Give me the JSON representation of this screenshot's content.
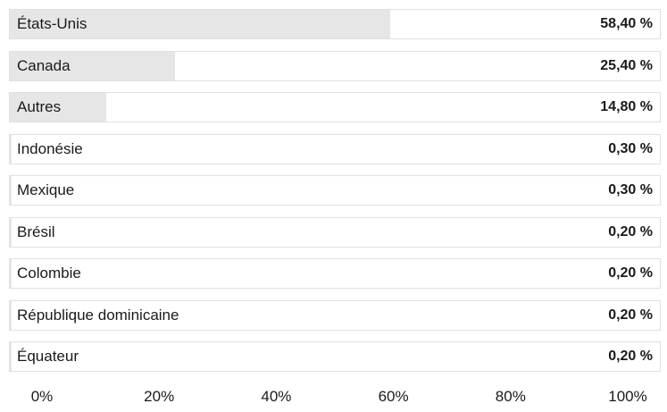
{
  "chart_data": {
    "type": "bar",
    "orientation": "horizontal",
    "categories": [
      "États-Unis",
      "Canada",
      "Autres",
      "Indonésie",
      "Mexique",
      "Brésil",
      "Colombie",
      "République dominicaine",
      "Équateur"
    ],
    "values": [
      58.4,
      25.4,
      14.8,
      0.3,
      0.3,
      0.2,
      0.2,
      0.2,
      0.2
    ],
    "value_labels": [
      "58,40 %",
      "25,40 %",
      "14,80 %",
      "0,30 %",
      "0,30 %",
      "0,20 %",
      "0,20 %",
      "0,20 %",
      "0,20 %"
    ],
    "xlim": [
      0,
      100
    ],
    "x_ticks": [
      0,
      20,
      40,
      60,
      80,
      100
    ],
    "x_tick_labels": [
      "0%",
      "20%",
      "40%",
      "60%",
      "80%",
      "100%"
    ],
    "title": "",
    "xlabel": "",
    "ylabel": "",
    "grid": false,
    "bar_color": "#e6e6e6",
    "row_border_color": "#e0e0e0"
  }
}
